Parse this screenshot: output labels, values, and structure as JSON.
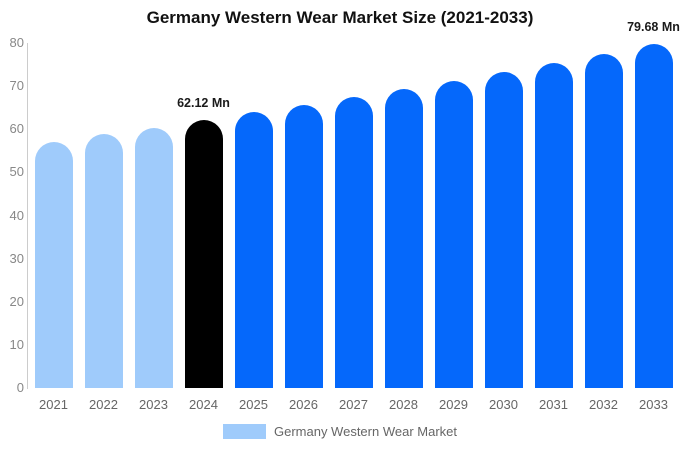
{
  "chart_data": {
    "type": "bar",
    "title": "Germany Western Wear Market Size (2021-2033)",
    "categories": [
      "2021",
      "2022",
      "2023",
      "2024",
      "2025",
      "2026",
      "2027",
      "2028",
      "2029",
      "2030",
      "2031",
      "2032",
      "2033"
    ],
    "values": [
      57.1,
      58.8,
      60.4,
      62.12,
      63.9,
      65.7,
      67.5,
      69.4,
      71.3,
      73.3,
      75.4,
      77.5,
      79.68
    ],
    "point_labels": {
      "2024": "62.12 Mn",
      "2033": "79.68 Mn"
    },
    "ylim": [
      0,
      80
    ],
    "yticks": [
      0,
      10,
      20,
      30,
      40,
      50,
      60,
      70,
      80
    ],
    "grid": false,
    "xlabel": "",
    "ylabel": "",
    "bar_color_default": "#0568fb",
    "bar_colors": {
      "2021": "#9fcbfb",
      "2022": "#9fcbfb",
      "2023": "#9fcbfb",
      "2024": "#000000"
    },
    "legend_position": "bottom",
    "legend": [
      {
        "label": "Germany Western Wear Market",
        "color": "#9fcbfb"
      }
    ]
  }
}
